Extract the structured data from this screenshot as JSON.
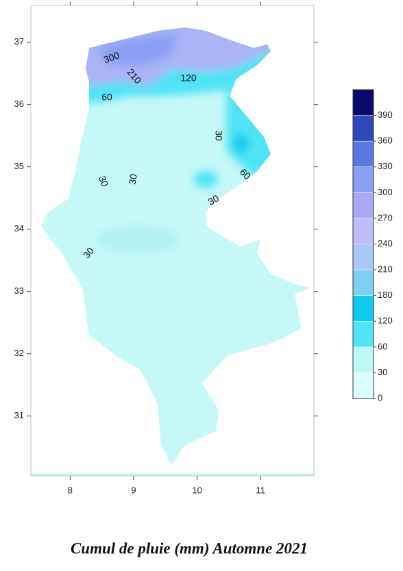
{
  "map": {
    "caption": "Cumul de  pluie  (mm)  Automne 2021",
    "xlim": [
      7.38,
      11.84
    ],
    "ylim": [
      30.04,
      37.59
    ],
    "xticks": [
      8,
      9,
      10,
      11
    ],
    "yticks": [
      31,
      32,
      33,
      34,
      35,
      36,
      37
    ],
    "colorbar": {
      "levels": [
        0,
        30,
        60,
        120,
        180,
        210,
        240,
        270,
        300,
        330,
        360,
        390
      ],
      "colors": [
        "#dcfdfd",
        "#bff7f7",
        "#4fe3f5",
        "#12c8ef",
        "#7fcff5",
        "#aac7f6",
        "#bebdf8",
        "#a8aaf5",
        "#8a9ff5",
        "#5a78e0",
        "#2f48b8",
        "#0a0a6e"
      ]
    },
    "contour_labels": [
      300,
      210,
      120,
      60,
      30,
      60,
      30,
      30,
      30,
      30
    ]
  }
}
